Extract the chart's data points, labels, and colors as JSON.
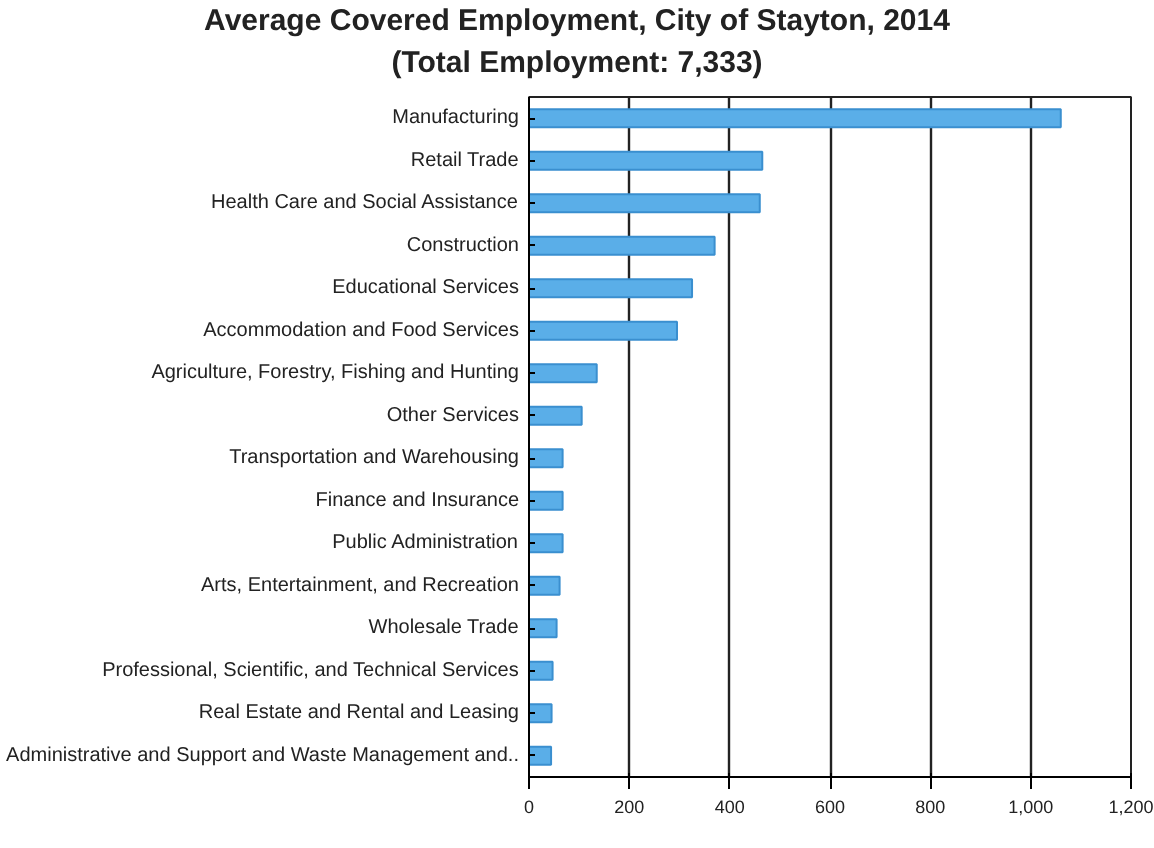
{
  "chart_data": {
    "type": "bar",
    "orientation": "horizontal",
    "title": "Average Covered Employment, City of Stayton, 2014",
    "subtitle": "(Total Employment: 7,333)",
    "categories": [
      "Manufacturing",
      "Retail Trade",
      "Health Care and Social Assistance",
      "Construction",
      "Educational Services",
      "Accommodation and Food Services",
      "Agriculture, Forestry, Fishing and Hunting",
      "Other Services",
      "Transportation and Warehousing",
      "Finance and Insurance",
      "Public Administration",
      "Arts, Entertainment, and Recreation",
      "Wholesale Trade",
      "Professional, Scientific, and Technical Services",
      "Real Estate and Rental and Leasing",
      "Administrative and Support and Waste Management and.."
    ],
    "values": [
      1060,
      465,
      460,
      370,
      325,
      295,
      135,
      105,
      67,
      67,
      67,
      61,
      55,
      47,
      45,
      44
    ],
    "color": "#5aaee8",
    "xlim": [
      0,
      1200
    ],
    "xticks": [
      0,
      200,
      400,
      600,
      800,
      {
        "value": 1000,
        "label": "1,000"
      },
      {
        "value": 1200,
        "label": "1,200"
      }
    ],
    "grid": "x",
    "legend": false
  }
}
